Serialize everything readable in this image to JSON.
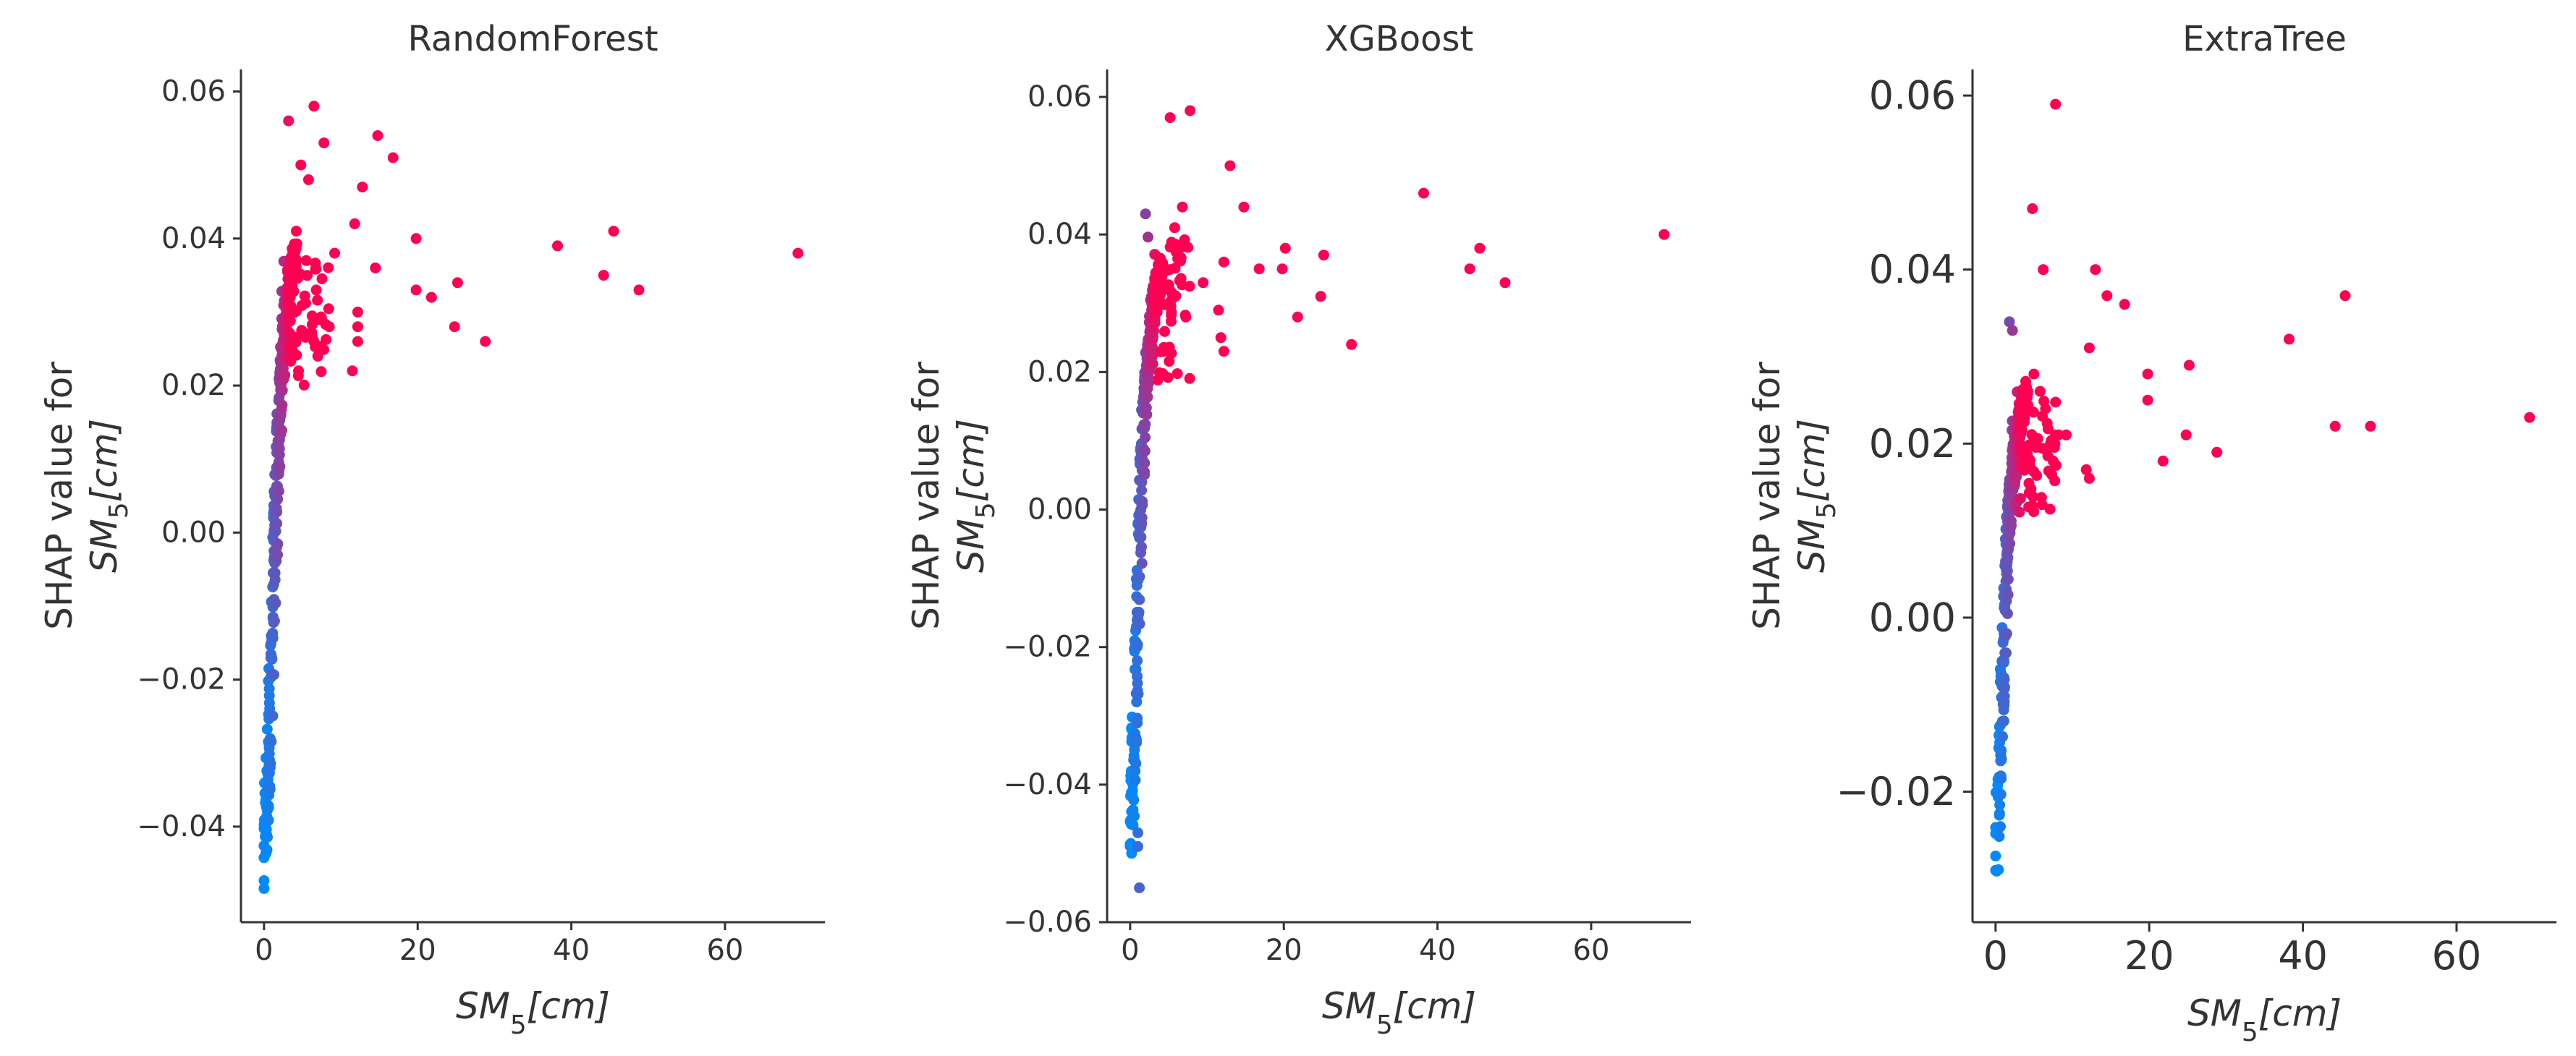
{
  "chart_data": [
    {
      "type": "scatter",
      "title": "RandomForest",
      "xlabel": "SM_5[cm]",
      "xlabel_parts": {
        "base": "SM",
        "sub": "5",
        "rest": "[cm]"
      },
      "ylabel_line1": "SHAP value for",
      "ylabel_line2_parts": {
        "base": "SM",
        "sub": "5",
        "rest": "[cm]"
      },
      "xlim": [
        -3,
        73
      ],
      "ylim": [
        -0.053,
        0.063
      ],
      "xticks": [
        0,
        20,
        40,
        60
      ],
      "xtick_labels": [
        "0",
        "20",
        "40",
        "60"
      ],
      "yticks": [
        -0.04,
        -0.02,
        0.0,
        0.02,
        0.04,
        0.06
      ],
      "ytick_labels": [
        "−0.04",
        "−0.02",
        "0.00",
        "0.02",
        "0.04",
        "0.06"
      ],
      "color_low": "#008afb",
      "color_high": "#ff0052",
      "grid": false,
      "seed": 11,
      "outliers": [
        [
          3.2,
          0.056
        ],
        [
          6.5,
          0.058
        ],
        [
          4.8,
          0.05
        ],
        [
          7.8,
          0.053
        ],
        [
          5.8,
          0.048
        ],
        [
          14.8,
          0.054
        ],
        [
          16.8,
          0.051
        ],
        [
          12.8,
          0.047
        ],
        [
          11.8,
          0.042
        ],
        [
          19.8,
          0.04
        ],
        [
          14.5,
          0.036
        ],
        [
          19.8,
          0.033
        ],
        [
          21.8,
          0.032
        ],
        [
          25.2,
          0.034
        ],
        [
          24.8,
          0.028
        ],
        [
          28.8,
          0.026
        ],
        [
          38.2,
          0.039
        ],
        [
          44.2,
          0.035
        ],
        [
          45.5,
          0.041
        ],
        [
          48.8,
          0.033
        ],
        [
          69.5,
          0.038
        ],
        [
          9.2,
          0.038
        ],
        [
          11.5,
          0.022
        ],
        [
          4.2,
          0.041
        ],
        [
          5.5,
          0.037
        ],
        [
          6.8,
          0.033
        ],
        [
          7.5,
          0.029
        ],
        [
          8.5,
          0.028
        ],
        [
          12.2,
          0.03
        ],
        [
          12.2,
          0.028
        ],
        [
          12.2,
          0.026
        ],
        [
          7.0,
          0.024
        ],
        [
          6.5,
          0.026
        ],
        [
          4.5,
          0.022
        ]
      ],
      "curve": {
        "knots": [
          [
            0.0,
            -0.048
          ],
          [
            0.3,
            -0.039
          ],
          [
            0.6,
            -0.03
          ],
          [
            0.9,
            -0.02
          ],
          [
            1.2,
            -0.01
          ],
          [
            1.5,
            0.002
          ],
          [
            1.8,
            0.012
          ],
          [
            2.2,
            0.02
          ],
          [
            2.6,
            0.026
          ],
          [
            3.0,
            0.031
          ],
          [
            3.5,
            0.035
          ],
          [
            4.0,
            0.038
          ]
        ],
        "count": 340,
        "x_spread": 0.35,
        "y_spread": 0.0018
      },
      "cluster": {
        "x_range": [
          2.0,
          8.5
        ],
        "y_range": [
          0.02,
          0.037
        ],
        "count": 60
      }
    },
    {
      "type": "scatter",
      "title": "XGBoost",
      "xlabel": "SM_5[cm]",
      "xlabel_parts": {
        "base": "SM",
        "sub": "5",
        "rest": "[cm]"
      },
      "ylabel_line1": "SHAP value for",
      "ylabel_line2_parts": {
        "base": "SM",
        "sub": "5",
        "rest": "[cm]"
      },
      "xlim": [
        -3,
        73
      ],
      "ylim": [
        -0.06,
        0.064
      ],
      "xticks": [
        0,
        20,
        40,
        60
      ],
      "xtick_labels": [
        "0",
        "20",
        "40",
        "60"
      ],
      "yticks": [
        -0.06,
        -0.04,
        -0.02,
        0.0,
        0.02,
        0.04,
        0.06
      ],
      "ytick_labels": [
        "−0.06",
        "−0.04",
        "−0.02",
        "0.00",
        "0.02",
        "0.04",
        "0.06"
      ],
      "color_low": "#008afb",
      "color_high": "#ff0052",
      "grid": false,
      "seed": 23,
      "outliers": [
        [
          5.2,
          0.057
        ],
        [
          7.8,
          0.058
        ],
        [
          13.0,
          0.05
        ],
        [
          14.8,
          0.044
        ],
        [
          38.2,
          0.046
        ],
        [
          45.5,
          0.038
        ],
        [
          44.2,
          0.035
        ],
        [
          48.8,
          0.033
        ],
        [
          69.5,
          0.04
        ],
        [
          20.2,
          0.038
        ],
        [
          25.2,
          0.037
        ],
        [
          19.8,
          0.035
        ],
        [
          16.8,
          0.035
        ],
        [
          12.2,
          0.036
        ],
        [
          11.5,
          0.029
        ],
        [
          21.8,
          0.028
        ],
        [
          24.8,
          0.031
        ],
        [
          28.8,
          0.024
        ],
        [
          11.8,
          0.025
        ],
        [
          12.2,
          0.023
        ],
        [
          6.8,
          0.044
        ],
        [
          5.8,
          0.041
        ],
        [
          9.5,
          0.033
        ],
        [
          2.0,
          0.043
        ],
        [
          1.2,
          -0.055
        ],
        [
          1.0,
          -0.049
        ],
        [
          1.0,
          -0.047
        ]
      ],
      "curve": {
        "knots": [
          [
            0.0,
            -0.052
          ],
          [
            0.3,
            -0.042
          ],
          [
            0.6,
            -0.03
          ],
          [
            0.9,
            -0.018
          ],
          [
            1.2,
            -0.006
          ],
          [
            1.5,
            0.004
          ],
          [
            1.8,
            0.013
          ],
          [
            2.2,
            0.02
          ],
          [
            2.6,
            0.025
          ],
          [
            3.0,
            0.029
          ],
          [
            3.5,
            0.032
          ],
          [
            4.0,
            0.035
          ]
        ],
        "count": 340,
        "x_spread": 0.35,
        "y_spread": 0.0018
      },
      "cluster": {
        "x_range": [
          2.0,
          8.5
        ],
        "y_range": [
          0.018,
          0.04
        ],
        "count": 60
      }
    },
    {
      "type": "scatter",
      "title": "ExtraTree",
      "xlabel": "SM_5[cm]",
      "xlabel_parts": {
        "base": "SM",
        "sub": "5",
        "rest": "[cm]"
      },
      "ylabel_line1": "SHAP value for",
      "ylabel_line2_parts": {
        "base": "SM",
        "sub": "5",
        "rest": "[cm]"
      },
      "xlim": [
        -3,
        73
      ],
      "ylim": [
        -0.035,
        0.063
      ],
      "xticks": [
        0,
        20,
        40,
        60
      ],
      "xtick_labels": [
        "0",
        "20",
        "40",
        "60"
      ],
      "yticks": [
        -0.02,
        0.0,
        0.02,
        0.04,
        0.06
      ],
      "ytick_labels": [
        "−0.02",
        "0.00",
        "0.02",
        "0.04",
        "0.06"
      ],
      "color_low": "#008afb",
      "color_high": "#ff0052",
      "grid": false,
      "seed": 37,
      "outliers": [
        [
          7.8,
          0.059
        ],
        [
          4.8,
          0.047
        ],
        [
          6.2,
          0.04
        ],
        [
          13.0,
          0.04
        ],
        [
          14.5,
          0.037
        ],
        [
          16.8,
          0.036
        ],
        [
          12.2,
          0.031
        ],
        [
          19.8,
          0.028
        ],
        [
          25.2,
          0.029
        ],
        [
          19.8,
          0.025
        ],
        [
          38.2,
          0.032
        ],
        [
          45.5,
          0.037
        ],
        [
          44.2,
          0.022
        ],
        [
          48.8,
          0.022
        ],
        [
          69.5,
          0.023
        ],
        [
          21.8,
          0.018
        ],
        [
          24.8,
          0.021
        ],
        [
          28.8,
          0.019
        ],
        [
          12.2,
          0.016
        ],
        [
          11.8,
          0.017
        ],
        [
          9.2,
          0.021
        ],
        [
          8.2,
          0.021
        ],
        [
          7.5,
          0.018
        ],
        [
          5.8,
          0.026
        ],
        [
          5.0,
          0.028
        ],
        [
          6.5,
          0.024
        ],
        [
          1.8,
          0.034
        ],
        [
          2.2,
          0.033
        ]
      ],
      "curve": {
        "knots": [
          [
            0.0,
            -0.031
          ],
          [
            0.3,
            -0.024
          ],
          [
            0.6,
            -0.016
          ],
          [
            0.9,
            -0.008
          ],
          [
            1.2,
            0.0
          ],
          [
            1.5,
            0.007
          ],
          [
            1.8,
            0.012
          ],
          [
            2.2,
            0.016
          ],
          [
            2.6,
            0.019
          ],
          [
            3.0,
            0.022
          ],
          [
            3.5,
            0.024
          ],
          [
            4.0,
            0.026
          ]
        ],
        "count": 320,
        "x_spread": 0.35,
        "y_spread": 0.0013
      },
      "cluster": {
        "x_range": [
          2.0,
          8.0
        ],
        "y_range": [
          0.012,
          0.026
        ],
        "count": 60
      }
    }
  ]
}
